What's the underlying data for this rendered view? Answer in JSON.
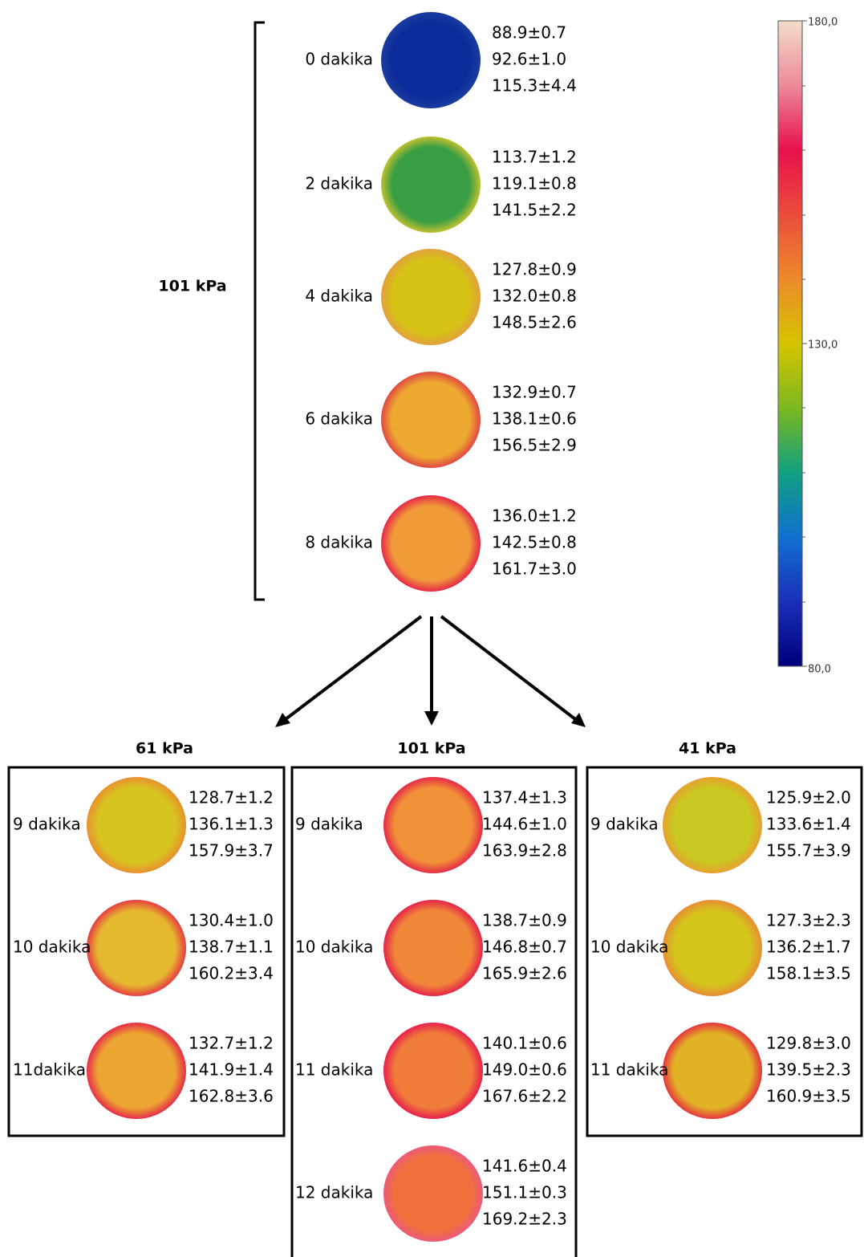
{
  "top": {
    "label": "101 kPa",
    "items": [
      {
        "time": "0 dakika",
        "values": [
          "88.9±0.7",
          "92.6±1.0",
          "115.3±4.4"
        ],
        "colors": [
          "#0c2c9c",
          "#1a3c9e"
        ]
      },
      {
        "time": "2 dakika",
        "values": [
          "113.7±1.2",
          "119.1±0.8",
          "141.5±2.2"
        ],
        "colors": [
          "#3a9e44",
          "#c0c030"
        ]
      },
      {
        "time": "4 dakika",
        "values": [
          "127.8±0.9",
          "132.0±0.8",
          "148.5±2.6"
        ],
        "colors": [
          "#d6c214",
          "#e2a040"
        ]
      },
      {
        "time": "6 dakika",
        "values": [
          "132.9±0.7",
          "138.1±0.6",
          "156.5±2.9"
        ],
        "colors": [
          "#eeaa30",
          "#e04842"
        ]
      },
      {
        "time": "8 dakika",
        "values": [
          "136.0±1.2",
          "142.5±0.8",
          "161.7±3.0"
        ],
        "colors": [
          "#f09a3a",
          "#e62848"
        ]
      }
    ]
  },
  "colorbar": {
    "max": "180,0",
    "mid": "130,0",
    "min": "80,0"
  },
  "panels": [
    {
      "title": "61 kPa",
      "items": [
        {
          "time": "9 dakika",
          "values": [
            "128.7±1.2",
            "136.1±1.3",
            "157.9±3.7"
          ],
          "colors": [
            "#d8c420",
            "#e8902e"
          ]
        },
        {
          "time": "10 dakika",
          "values": [
            "130.4±1.0",
            "138.7±1.1",
            "160.2±3.4"
          ],
          "colors": [
            "#e6b830",
            "#e63c40"
          ]
        },
        {
          "time": "11dakika",
          "values": [
            "132.7±1.2",
            "141.9±1.4",
            "162.8±3.6"
          ],
          "colors": [
            "#eca432",
            "#e62c48"
          ]
        }
      ]
    },
    {
      "title": "101 kPa",
      "items": [
        {
          "time": "9 dakika",
          "values": [
            "137.4±1.3",
            "144.6±1.0",
            "163.9±2.8"
          ],
          "colors": [
            "#f09038",
            "#e62a48"
          ]
        },
        {
          "time": "10 dakika",
          "values": [
            "138.7±0.9",
            "146.8±0.7",
            "165.9±2.6"
          ],
          "colors": [
            "#f08638",
            "#e6244a"
          ]
        },
        {
          "time": "11 dakika",
          "values": [
            "140.1±0.6",
            "149.0±0.6",
            "167.6±2.2"
          ],
          "colors": [
            "#f07c3a",
            "#e8204c"
          ]
        },
        {
          "time": "12 dakika",
          "values": [
            "141.6±0.4",
            "151.1±0.3",
            "169.2±2.3"
          ],
          "colors": [
            "#f0703c",
            "#ec5a7a"
          ]
        }
      ]
    },
    {
      "title": "41 kPa",
      "items": [
        {
          "time": "9 dakika",
          "values": [
            "125.9±2.0",
            "133.6±1.4",
            "155.7±3.9"
          ],
          "colors": [
            "#c8c820",
            "#e8a030"
          ]
        },
        {
          "time": "10 dakika",
          "values": [
            "127.3±2.3",
            "136.2±1.7",
            "158.1±3.5"
          ],
          "colors": [
            "#d4c41c",
            "#e88c34"
          ]
        },
        {
          "time": "11 dakika",
          "values": [
            "129.8±3.0",
            "139.5±2.3",
            "160.9±3.5"
          ],
          "colors": [
            "#e2b226",
            "#e6343e"
          ]
        }
      ]
    }
  ]
}
